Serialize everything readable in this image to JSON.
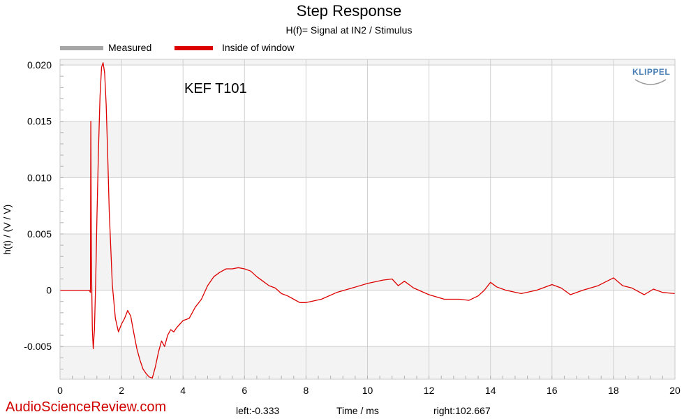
{
  "chart_data": {
    "type": "line",
    "title": "Step Response",
    "subtitle": "H(f)= Signal at IN2 / Stimulus",
    "xlabel": "Time / ms",
    "ylabel": "h(t) / (V / V)",
    "xlim": [
      0,
      20
    ],
    "ylim": [
      -0.0079,
      0.0205
    ],
    "x_ticks": [
      0,
      2,
      4,
      6,
      8,
      10,
      12,
      14,
      16,
      18,
      20
    ],
    "x_tick_labels": [
      "0",
      "2",
      "4",
      "6",
      "8",
      "10",
      "12",
      "14",
      "16",
      "18",
      "20"
    ],
    "y_ticks": [
      0.02,
      0.015,
      0.01,
      0.005,
      0,
      -0.005
    ],
    "y_tick_labels": [
      "0.020",
      "0.015",
      "0.010",
      "0.005",
      "0",
      "-0.005"
    ],
    "grid": true,
    "legend_position": "top-left",
    "series": [
      {
        "name": "Measured",
        "color": "#a6a6a6",
        "x": [],
        "y": []
      },
      {
        "name": "Inside of window",
        "color": "#dd0000",
        "x": [
          0,
          0.5,
          0.95,
          0.99,
          1.0,
          1.02,
          1.05,
          1.08,
          1.12,
          1.16,
          1.2,
          1.25,
          1.3,
          1.35,
          1.4,
          1.45,
          1.5,
          1.55,
          1.6,
          1.7,
          1.8,
          1.9,
          2.0,
          2.1,
          2.2,
          2.3,
          2.4,
          2.5,
          2.6,
          2.7,
          2.8,
          2.9,
          3.0,
          3.1,
          3.2,
          3.3,
          3.4,
          3.5,
          3.6,
          3.7,
          3.8,
          3.9,
          4.0,
          4.2,
          4.4,
          4.6,
          4.8,
          5.0,
          5.2,
          5.4,
          5.6,
          5.8,
          6.0,
          6.2,
          6.4,
          6.6,
          6.8,
          7.0,
          7.2,
          7.4,
          7.6,
          7.8,
          8.0,
          8.5,
          9.0,
          9.5,
          10.0,
          10.5,
          10.8,
          11.0,
          11.2,
          11.5,
          12.0,
          12.5,
          13.0,
          13.3,
          13.6,
          13.8,
          14.0,
          14.2,
          14.5,
          15.0,
          15.5,
          16.0,
          16.3,
          16.6,
          17.0,
          17.5,
          18.0,
          18.3,
          18.6,
          19.0,
          19.3,
          19.6,
          20.0
        ],
        "y": [
          0,
          0,
          0,
          -0.0002,
          0.015,
          0.003,
          -0.0035,
          -0.0052,
          -0.0035,
          0.0008,
          0.0065,
          0.0125,
          0.0172,
          0.0198,
          0.0202,
          0.0193,
          0.0165,
          0.012,
          0.007,
          0.0005,
          -0.0025,
          -0.0037,
          -0.003,
          -0.0025,
          -0.0018,
          -0.0023,
          -0.0038,
          -0.0052,
          -0.0062,
          -0.007,
          -0.0074,
          -0.0077,
          -0.0078,
          -0.0068,
          -0.0055,
          -0.0045,
          -0.005,
          -0.004,
          -0.0035,
          -0.0037,
          -0.0033,
          -0.003,
          -0.0027,
          -0.0025,
          -0.0015,
          -0.0008,
          0.0004,
          0.0012,
          0.0016,
          0.0019,
          0.0019,
          0.002,
          0.0019,
          0.0017,
          0.0012,
          0.0008,
          0.0004,
          0.0002,
          -0.0003,
          -0.0005,
          -0.0008,
          -0.0011,
          -0.0011,
          -0.0008,
          -0.0002,
          0.0002,
          0.0006,
          0.0009,
          0.001,
          0.0004,
          0.0008,
          0.0002,
          -0.0004,
          -0.0008,
          -0.0008,
          -0.0009,
          -0.0005,
          0.0,
          0.0007,
          0.0003,
          0.0,
          -0.0003,
          0.0,
          0.0005,
          0.0002,
          -0.0004,
          0.0,
          0.0004,
          0.0011,
          0.0004,
          0.0002,
          -0.0004,
          0.0001,
          -0.0002,
          -0.0003
        ]
      }
    ],
    "annotation": "KEF T101"
  },
  "footer": {
    "left_info": "left:-0.333",
    "right_info": "right:102.667",
    "brand": "AudioScienceReview.com"
  },
  "logo_text": "KLIPPEL",
  "colors": {
    "band_light": "#f3f3f3",
    "band_white": "#ffffff",
    "grid": "#d0d0d0",
    "annotation": "#dd0000",
    "brand": "#d00000"
  }
}
